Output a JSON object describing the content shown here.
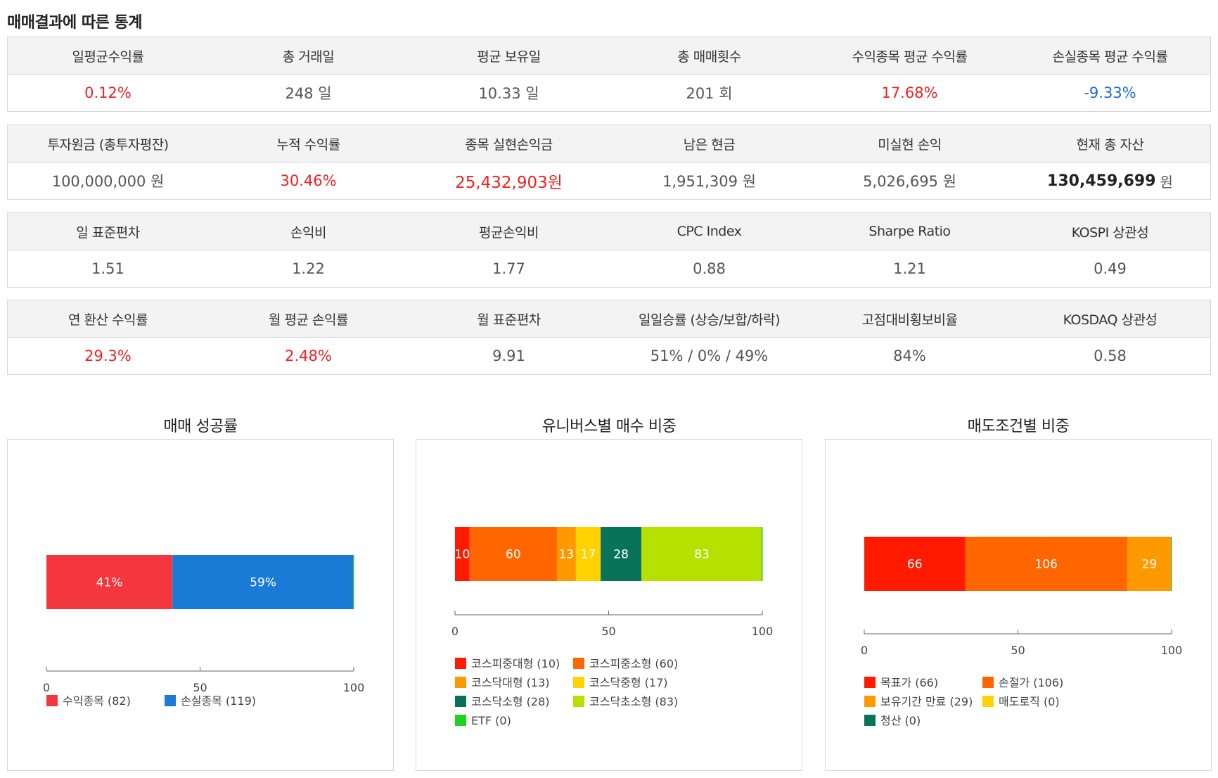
{
  "page": {
    "title": "매매결과에 따른 통계"
  },
  "stats_rows": [
    {
      "headers": [
        "일평균수익률",
        "총 거래일",
        "평균 보유일",
        "총 매매횟수",
        "수익종목 평균 수익률",
        "손실종목 평균 수익률"
      ],
      "values": [
        "0.12%",
        "248 일",
        "10.33 일",
        "201 회",
        "17.68%",
        "-9.33%"
      ]
    },
    {
      "headers": [
        "투자원금 (총투자평잔)",
        "누적 수익률",
        "종목 실현손익금",
        "남은 현금",
        "미실현 손익",
        "현재 총 자산"
      ],
      "values": [
        "100,000,000 원",
        "30.46%",
        "25,432,903원",
        "1,951,309 원",
        "5,026,695 원",
        "130,459,699"
      ],
      "last_unit": "원"
    },
    {
      "headers": [
        "일 표준편차",
        "손익비",
        "평균손익비",
        "CPC Index",
        "Sharpe Ratio",
        "KOSPI 상관성"
      ],
      "values": [
        "1.51",
        "1.22",
        "1.77",
        "0.88",
        "1.21",
        "0.49"
      ]
    },
    {
      "headers": [
        "연 환산 수익률",
        "월 평균 손익률",
        "월 표준편차",
        "일일승률 (상승/보합/하락)",
        "고점대비횡보비율",
        "KOSDAQ 상관성"
      ],
      "values": [
        "29.3%",
        "2.48%",
        "9.91",
        "51% / 0% / 49%",
        "84%",
        "0.58"
      ]
    }
  ],
  "value_colors": {
    "positive": "#ee2222",
    "negative": "#1a6bd6"
  },
  "chart_data": [
    {
      "type": "bar",
      "orientation": "horizontal-stacked-percent",
      "title": "매매 성공률",
      "xlim": [
        0,
        100
      ],
      "ticks": [
        0,
        50,
        100
      ],
      "segments": [
        {
          "name": "수익종목",
          "count": 82,
          "percent": 41,
          "label": "41%",
          "legend": "수익종목 (82)",
          "color": "#f4363f"
        },
        {
          "name": "손실종목",
          "count": 119,
          "percent": 59,
          "label": "59%",
          "legend": "손실종목 (119)",
          "color": "#1a7bd6"
        }
      ]
    },
    {
      "type": "bar",
      "orientation": "horizontal-stacked-percent",
      "title": "유니버스별 매수 비중",
      "xlim": [
        0,
        100
      ],
      "ticks": [
        0,
        50,
        100
      ],
      "segments": [
        {
          "name": "코스피중대형",
          "count": 10,
          "label": "10",
          "legend": "코스피중대형 (10)",
          "color": "#ff1a00"
        },
        {
          "name": "코스피중소형",
          "count": 60,
          "label": "60",
          "legend": "코스피중소형 (60)",
          "color": "#ff6600"
        },
        {
          "name": "코스닥대형",
          "count": 13,
          "label": "13",
          "legend": "코스닥대형 (13)",
          "color": "#ff9900"
        },
        {
          "name": "코스닥중형",
          "count": 17,
          "label": "17",
          "legend": "코스닥중형 (17)",
          "color": "#ffd200"
        },
        {
          "name": "코스닥소형",
          "count": 28,
          "label": "28",
          "legend": "코스닥소형 (28)",
          "color": "#08735a"
        },
        {
          "name": "코스닥초소형",
          "count": 83,
          "label": "83",
          "legend": "코스닥초소형 (83)",
          "color": "#b5e000"
        },
        {
          "name": "ETF",
          "count": 0,
          "label": "",
          "legend": "ETF (0)",
          "color": "#22d022"
        }
      ]
    },
    {
      "type": "bar",
      "orientation": "horizontal-stacked-percent",
      "title": "매도조건별 비중",
      "xlim": [
        0,
        100
      ],
      "ticks": [
        0,
        50,
        100
      ],
      "segments": [
        {
          "name": "목표가",
          "count": 66,
          "label": "66",
          "legend": "목표가 (66)",
          "color": "#ff1a00"
        },
        {
          "name": "손절가",
          "count": 106,
          "label": "106",
          "legend": "손절가 (106)",
          "color": "#ff6600"
        },
        {
          "name": "보유기간 만료",
          "count": 29,
          "label": "29",
          "legend": "보유기간 만료 (29)",
          "color": "#ff9900"
        },
        {
          "name": "매도로직",
          "count": 0,
          "label": "",
          "legend": "매도로직 (0)",
          "color": "#ffd200"
        },
        {
          "name": "청산",
          "count": 0,
          "label": "",
          "legend": "청산 (0)",
          "color": "#08735a"
        }
      ]
    }
  ]
}
